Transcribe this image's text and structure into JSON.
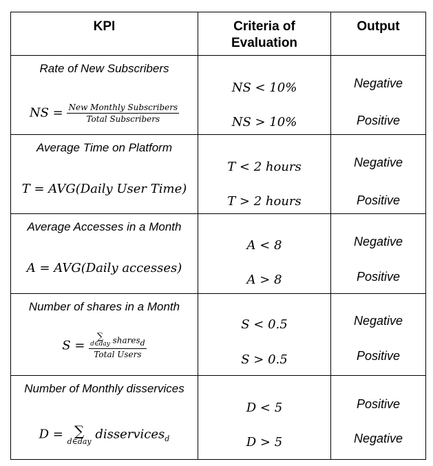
{
  "headers": {
    "kpi": "KPI",
    "criteria_line1": "Criteria of",
    "criteria_line2": "Evaluation",
    "output": "Output"
  },
  "rows": [
    {
      "title": "Rate of New Subscribers",
      "formula_lhs": "NS =",
      "formula_num": "New Monthly Subscribers",
      "formula_den": "Total Subscribers",
      "criteria": [
        "NS < 10%",
        "NS > 10%"
      ],
      "outputs": [
        "Negative",
        "Positive"
      ]
    },
    {
      "title": "Average Time on Platform",
      "formula": "T = AVG(Daily User Time)",
      "criteria": [
        "T < 2 hours",
        "T > 2 hours"
      ],
      "outputs": [
        "Negative",
        "Positive"
      ]
    },
    {
      "title": "Average Accesses in a Month",
      "formula": "A = AVG(Daily accesses)",
      "criteria": [
        "A < 8",
        "A > 8"
      ],
      "outputs": [
        "Negative",
        "Positive"
      ]
    },
    {
      "title": "Number of shares in a Month",
      "formula_lhs": "S =",
      "formula_sum": "∑",
      "formula_sum_sub": "d∈day",
      "formula_num_term": "shares",
      "formula_num_index": "d",
      "formula_den": "Total Users",
      "criteria": [
        "S < 0.5",
        "S > 0.5"
      ],
      "outputs": [
        "Negative",
        "Positive"
      ]
    },
    {
      "title": "Number of Monthly disservices",
      "formula_lhs": "D =",
      "formula_sum": "∑",
      "formula_sum_sub": "d∈day",
      "formula_term": "disservices",
      "formula_term_index": "d",
      "criteria": [
        "D < 5",
        "D > 5"
      ],
      "outputs": [
        "Positive",
        "Negative"
      ]
    }
  ]
}
